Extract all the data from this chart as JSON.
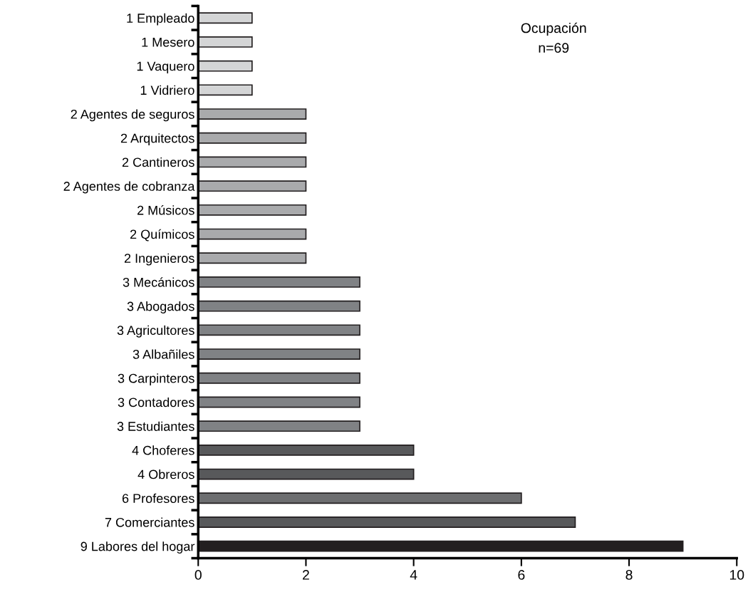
{
  "chart_data": {
    "type": "bar",
    "orientation": "horizontal",
    "categories": [
      "1 Empleado",
      "1 Mesero",
      "1 Vaquero",
      "1 Vidriero",
      "2 Agentes de seguros",
      "2 Arquitectos",
      "2 Cantineros",
      "2 Agentes de cobranza",
      "2 Músicos",
      "2 Químicos",
      "2 Ingenieros",
      "3 Mecánicos",
      "3 Abogados",
      "3 Agricultores",
      "3 Albañiles",
      "3 Carpinteros",
      "3 Contadores",
      "3 Estudiantes",
      "4 Choferes",
      "4 Obreros",
      "6 Profesores",
      "7 Comerciantes",
      "9 Labores del hogar"
    ],
    "values": [
      1,
      1,
      1,
      1,
      2,
      2,
      2,
      2,
      2,
      2,
      2,
      3,
      3,
      3,
      3,
      3,
      3,
      3,
      4,
      4,
      6,
      7,
      9
    ],
    "colors": [
      "#d4d5d6",
      "#d4d5d6",
      "#d4d5d6",
      "#d4d5d6",
      "#a9aaac",
      "#a9aaac",
      "#a9aaac",
      "#a9aaac",
      "#a9aaac",
      "#a9aaac",
      "#a9aaac",
      "#808285",
      "#808285",
      "#808285",
      "#808285",
      "#808285",
      "#808285",
      "#808285",
      "#58595b",
      "#58595b",
      "#6d6e70",
      "#58595b",
      "#231f20"
    ],
    "xlim": [
      0,
      10
    ],
    "xticks": [
      0,
      2,
      4,
      6,
      8,
      10
    ],
    "annotations": [
      "Ocupación",
      "n=69"
    ]
  }
}
